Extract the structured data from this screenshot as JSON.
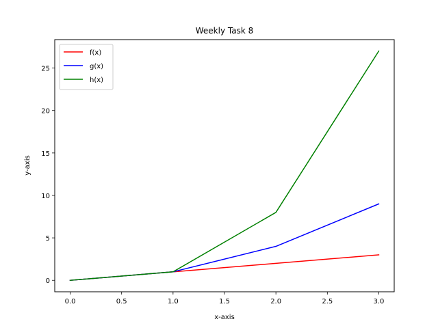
{
  "chart_data": {
    "type": "line",
    "title": "Weekly Task 8",
    "xlabel": "x-axis",
    "ylabel": "y-axis",
    "x": [
      0,
      1,
      2,
      3
    ],
    "xlim": [
      -0.15,
      3.15
    ],
    "ylim": [
      -1.35,
      28.35
    ],
    "xticks": [
      0.0,
      0.5,
      1.0,
      1.5,
      2.0,
      2.5,
      3.0
    ],
    "xtick_labels": [
      "0.0",
      "0.5",
      "1.0",
      "1.5",
      "2.0",
      "2.5",
      "3.0"
    ],
    "yticks": [
      0,
      5,
      10,
      15,
      20,
      25
    ],
    "ytick_labels": [
      "0",
      "5",
      "10",
      "15",
      "20",
      "25"
    ],
    "grid": false,
    "legend_position": "upper left",
    "series": [
      {
        "name": "f(x)",
        "values": [
          0,
          1,
          2,
          3
        ],
        "color": "#ff0000"
      },
      {
        "name": "g(x)",
        "values": [
          0,
          1,
          4,
          9
        ],
        "color": "#0000ff"
      },
      {
        "name": "h(x)",
        "values": [
          0,
          1,
          8,
          27
        ],
        "color": "#008000"
      }
    ]
  }
}
